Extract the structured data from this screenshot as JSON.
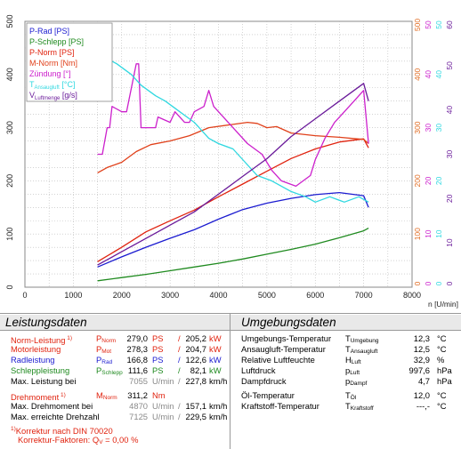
{
  "colors": {
    "p_rad": "#1b1bd0",
    "p_schlepp": "#1f8a1f",
    "p_norm": "#e0230f",
    "m_norm": "#e0401a",
    "zuendung": "#cc20cc",
    "t_ansaug": "#30d8e0",
    "v_luft": "#6a1a9a",
    "grid": "#b8b8b8",
    "axis_secondary": "#e06a20"
  },
  "chart_data": {
    "type": "line",
    "xlabel": "n [U/min]",
    "xlim": [
      0,
      8000
    ],
    "x_ticks": [
      "0",
      "1000",
      "2000",
      "3000",
      "4000",
      "5000",
      "6000",
      "7000",
      "8000"
    ],
    "ylim": [
      0,
      500
    ],
    "y_ticks": [
      "0",
      "100",
      "200",
      "300",
      "400",
      "500"
    ],
    "right_axes": [
      {
        "color": "#e06a20",
        "ticks": [
          "0",
          "100",
          "200",
          "300",
          "400",
          "500"
        ]
      },
      {
        "color": "#cc20cc",
        "ticks": [
          "0",
          "10",
          "20",
          "30",
          "40",
          "50"
        ]
      },
      {
        "color": "#30d8e0",
        "ticks": [
          "0",
          "10",
          "20",
          "30",
          "40",
          "50"
        ]
      },
      {
        "color": "#6a1a9a",
        "ticks": [
          "0",
          "10",
          "20",
          "30",
          "40",
          "50",
          "60"
        ]
      }
    ],
    "legend_position": "top-left",
    "series": [
      {
        "name": "P-Rad [PS]",
        "key": "p_rad",
        "x": [
          1500,
          2000,
          2500,
          3000,
          3500,
          4000,
          4500,
          5000,
          5500,
          6000,
          6500,
          7000,
          7100
        ],
        "y": [
          38,
          57,
          75,
          92,
          108,
          128,
          146,
          158,
          167,
          174,
          178,
          172,
          150
        ]
      },
      {
        "name": "P-Schlepp [PS]",
        "key": "p_schlepp",
        "x": [
          1500,
          2000,
          2500,
          3000,
          3500,
          4000,
          4500,
          5000,
          5500,
          6000,
          6500,
          7000,
          7100
        ],
        "y": [
          12,
          18,
          24,
          31,
          38,
          45,
          53,
          62,
          71,
          81,
          93,
          106,
          111
        ]
      },
      {
        "name": "P-Norm [PS]",
        "key": "p_norm",
        "x": [
          1500,
          2000,
          2500,
          3000,
          3500,
          4000,
          4500,
          5000,
          5500,
          6000,
          6500,
          7000,
          7100
        ],
        "y": [
          48,
          75,
          104,
          125,
          145,
          170,
          194,
          218,
          242,
          260,
          273,
          279,
          262
        ]
      },
      {
        "name": "M-Norm [Nm]",
        "key": "m_norm",
        "x": [
          1500,
          1700,
          2000,
          2300,
          2600,
          3000,
          3400,
          3800,
          4200,
          4600,
          4800,
          5000,
          5200,
          5500,
          6000,
          6500,
          7000,
          7100
        ],
        "y": [
          215,
          225,
          235,
          255,
          268,
          275,
          285,
          300,
          305,
          310,
          308,
          300,
          302,
          290,
          285,
          282,
          278,
          270
        ]
      },
      {
        "name": "Zündung [°]",
        "key": "zuendung",
        "x": [
          1500,
          1600,
          1700,
          1750,
          1800,
          2000,
          2100,
          2300,
          2350,
          2400,
          2600,
          2700,
          2750,
          3000,
          3100,
          3300,
          3400,
          3500,
          3700,
          3800,
          3900,
          4100,
          4300,
          4600,
          4900,
          5100,
          5300,
          5600,
          5900,
          6000,
          6200,
          6400,
          6600,
          6800,
          7000,
          7100
        ],
        "y": [
          25,
          25,
          30,
          30,
          34,
          33,
          33,
          42,
          42,
          30,
          30,
          30,
          32,
          31,
          33,
          31,
          31,
          33,
          34,
          37,
          34,
          32,
          30,
          27,
          25,
          22,
          20,
          19,
          21,
          24,
          28,
          31,
          33,
          35,
          37,
          27
        ]
      },
      {
        "name": "TAnsaugluft [°C]",
        "key": "t_ansaug",
        "x": [
          1500,
          1600,
          1700,
          1900,
          2200,
          2400,
          2700,
          2900,
          3200,
          3500,
          3700,
          3800,
          4000,
          4300,
          4500,
          4800,
          5100,
          5300,
          5500,
          5800,
          6000,
          6300,
          6600,
          6900,
          7100
        ],
        "y": [
          45,
          44,
          43,
          42,
          40,
          38,
          36,
          35,
          33,
          31,
          29,
          28,
          27,
          26,
          24,
          21,
          20,
          19,
          18,
          17,
          16,
          17,
          16,
          17,
          16
        ]
      },
      {
        "name": "VLuftmenge [g/s]",
        "key": "v_luft",
        "x": [
          1500,
          2000,
          2500,
          3000,
          3500,
          4000,
          4500,
          5000,
          5500,
          6000,
          6500,
          7000,
          7100
        ],
        "y": [
          5,
          8,
          11,
          14,
          17,
          21,
          25,
          29,
          34,
          38,
          42,
          46,
          42
        ]
      }
    ]
  },
  "legend": {
    "items": [
      {
        "key": "p_rad",
        "main": "P-Rad",
        "sub": "",
        "unit": " [PS]"
      },
      {
        "key": "p_schlepp",
        "main": "P-Schlepp",
        "sub": "",
        "unit": " [PS]"
      },
      {
        "key": "p_norm",
        "main": "P-Norm",
        "sub": "",
        "unit": " [PS]"
      },
      {
        "key": "m_norm",
        "main": "M-Norm",
        "sub": "",
        "unit": " [Nm]"
      },
      {
        "key": "zuendung",
        "main": "Zündung",
        "sub": "",
        "unit": " [°]"
      },
      {
        "key": "t_ansaug",
        "main": "T",
        "sub": "Ansaugluft",
        "unit": " [°C]"
      },
      {
        "key": "v_luft",
        "main": "V",
        "sub": "Luftmenge",
        "unit": " [g/s]"
      }
    ]
  },
  "leistung": {
    "title": "Leistungsdaten",
    "rows": [
      {
        "label": "Norm-Leistung",
        "sup": " 1)",
        "color": "#e0230f",
        "sym": "P",
        "sub": "Norm",
        "v1": "279,0",
        "u1": "PS",
        "sl": "/",
        "v2": "205,2",
        "u2": "kW"
      },
      {
        "label": "Motorleistung",
        "sup": "",
        "color": "#e0230f",
        "sym": "P",
        "sub": "Mot",
        "v1": "278,3",
        "u1": "PS",
        "sl": "/",
        "v2": "204,7",
        "u2": "kW"
      },
      {
        "label": "Radleistung",
        "sup": "",
        "color": "#1b1bd0",
        "sym": "P",
        "sub": "Rad",
        "v1": "166,8",
        "u1": "PS",
        "sl": "/",
        "v2": "122,6",
        "u2": "kW"
      },
      {
        "label": "Schleppleistung",
        "sup": "",
        "color": "#1f8a1f",
        "sym": "P",
        "sub": "Schlepp",
        "v1": "111,6",
        "u1": "PS",
        "sl": "/",
        "v2": "82,1",
        "u2": "kW"
      },
      {
        "label": "Max. Leistung bei",
        "sup": "",
        "color": "#000000",
        "sym": "",
        "sub": "",
        "v1": "7055",
        "u1": "U/min",
        "sl": "/",
        "v2": "227,8",
        "u2": "km/h"
      },
      {
        "label": "Drehmoment",
        "sup": " 1)",
        "color": "#e0230f",
        "sym": "M",
        "sub": "Norm",
        "v1": "311,2",
        "u1": "Nm",
        "sl": "",
        "v2": "",
        "u2": ""
      },
      {
        "label": "Max. Drehmoment bei",
        "sup": "",
        "color": "#000000",
        "sym": "",
        "sub": "",
        "v1": "4870",
        "u1": "U/min",
        "sl": "/",
        "v2": "157,1",
        "u2": "km/h"
      },
      {
        "label": "Max. erreichte Drehzahl",
        "sup": "",
        "color": "#000000",
        "sym": "",
        "sub": "",
        "v1": "7125",
        "u1": "U/min",
        "sl": "/",
        "v2": "229,5",
        "u2": "km/h"
      }
    ],
    "footnote1": "Korrektur nach DIN 70020",
    "footnote1_mark": "1)",
    "footnote2": "Korrektur-Faktoren: Q",
    "footnote2_sub": "V",
    "footnote2_val": " =   0,00 %"
  },
  "umgebung": {
    "title": "Umgebungsdaten",
    "rows": [
      {
        "label": "Umgebungs-Temperatur",
        "sym": "T",
        "sub": "Umgebung",
        "v": "12,3",
        "u": "°C"
      },
      {
        "label": "Ansaugluft-Temperatur",
        "sym": "T",
        "sub": "Ansaugluft",
        "v": "12,5",
        "u": "°C"
      },
      {
        "label": "Relative Luftfeuchte",
        "sym": "H",
        "sub": "Luft",
        "v": "32,9",
        "u": "%"
      },
      {
        "label": "Luftdruck",
        "sym": "p",
        "sub": "Luft",
        "v": "997,6",
        "u": "hPa"
      },
      {
        "label": "Dampfdruck",
        "sym": "p",
        "sub": "Dampf",
        "v": "4,7",
        "u": "hPa"
      },
      {
        "label": "Öl-Temperatur",
        "sym": "T",
        "sub": "Öl",
        "v": "12,0",
        "u": "°C"
      },
      {
        "label": "Kraftstoff-Temperatur",
        "sym": "T",
        "sub": "Kraftstoff",
        "v": "---,-",
        "u": "°C"
      }
    ]
  }
}
